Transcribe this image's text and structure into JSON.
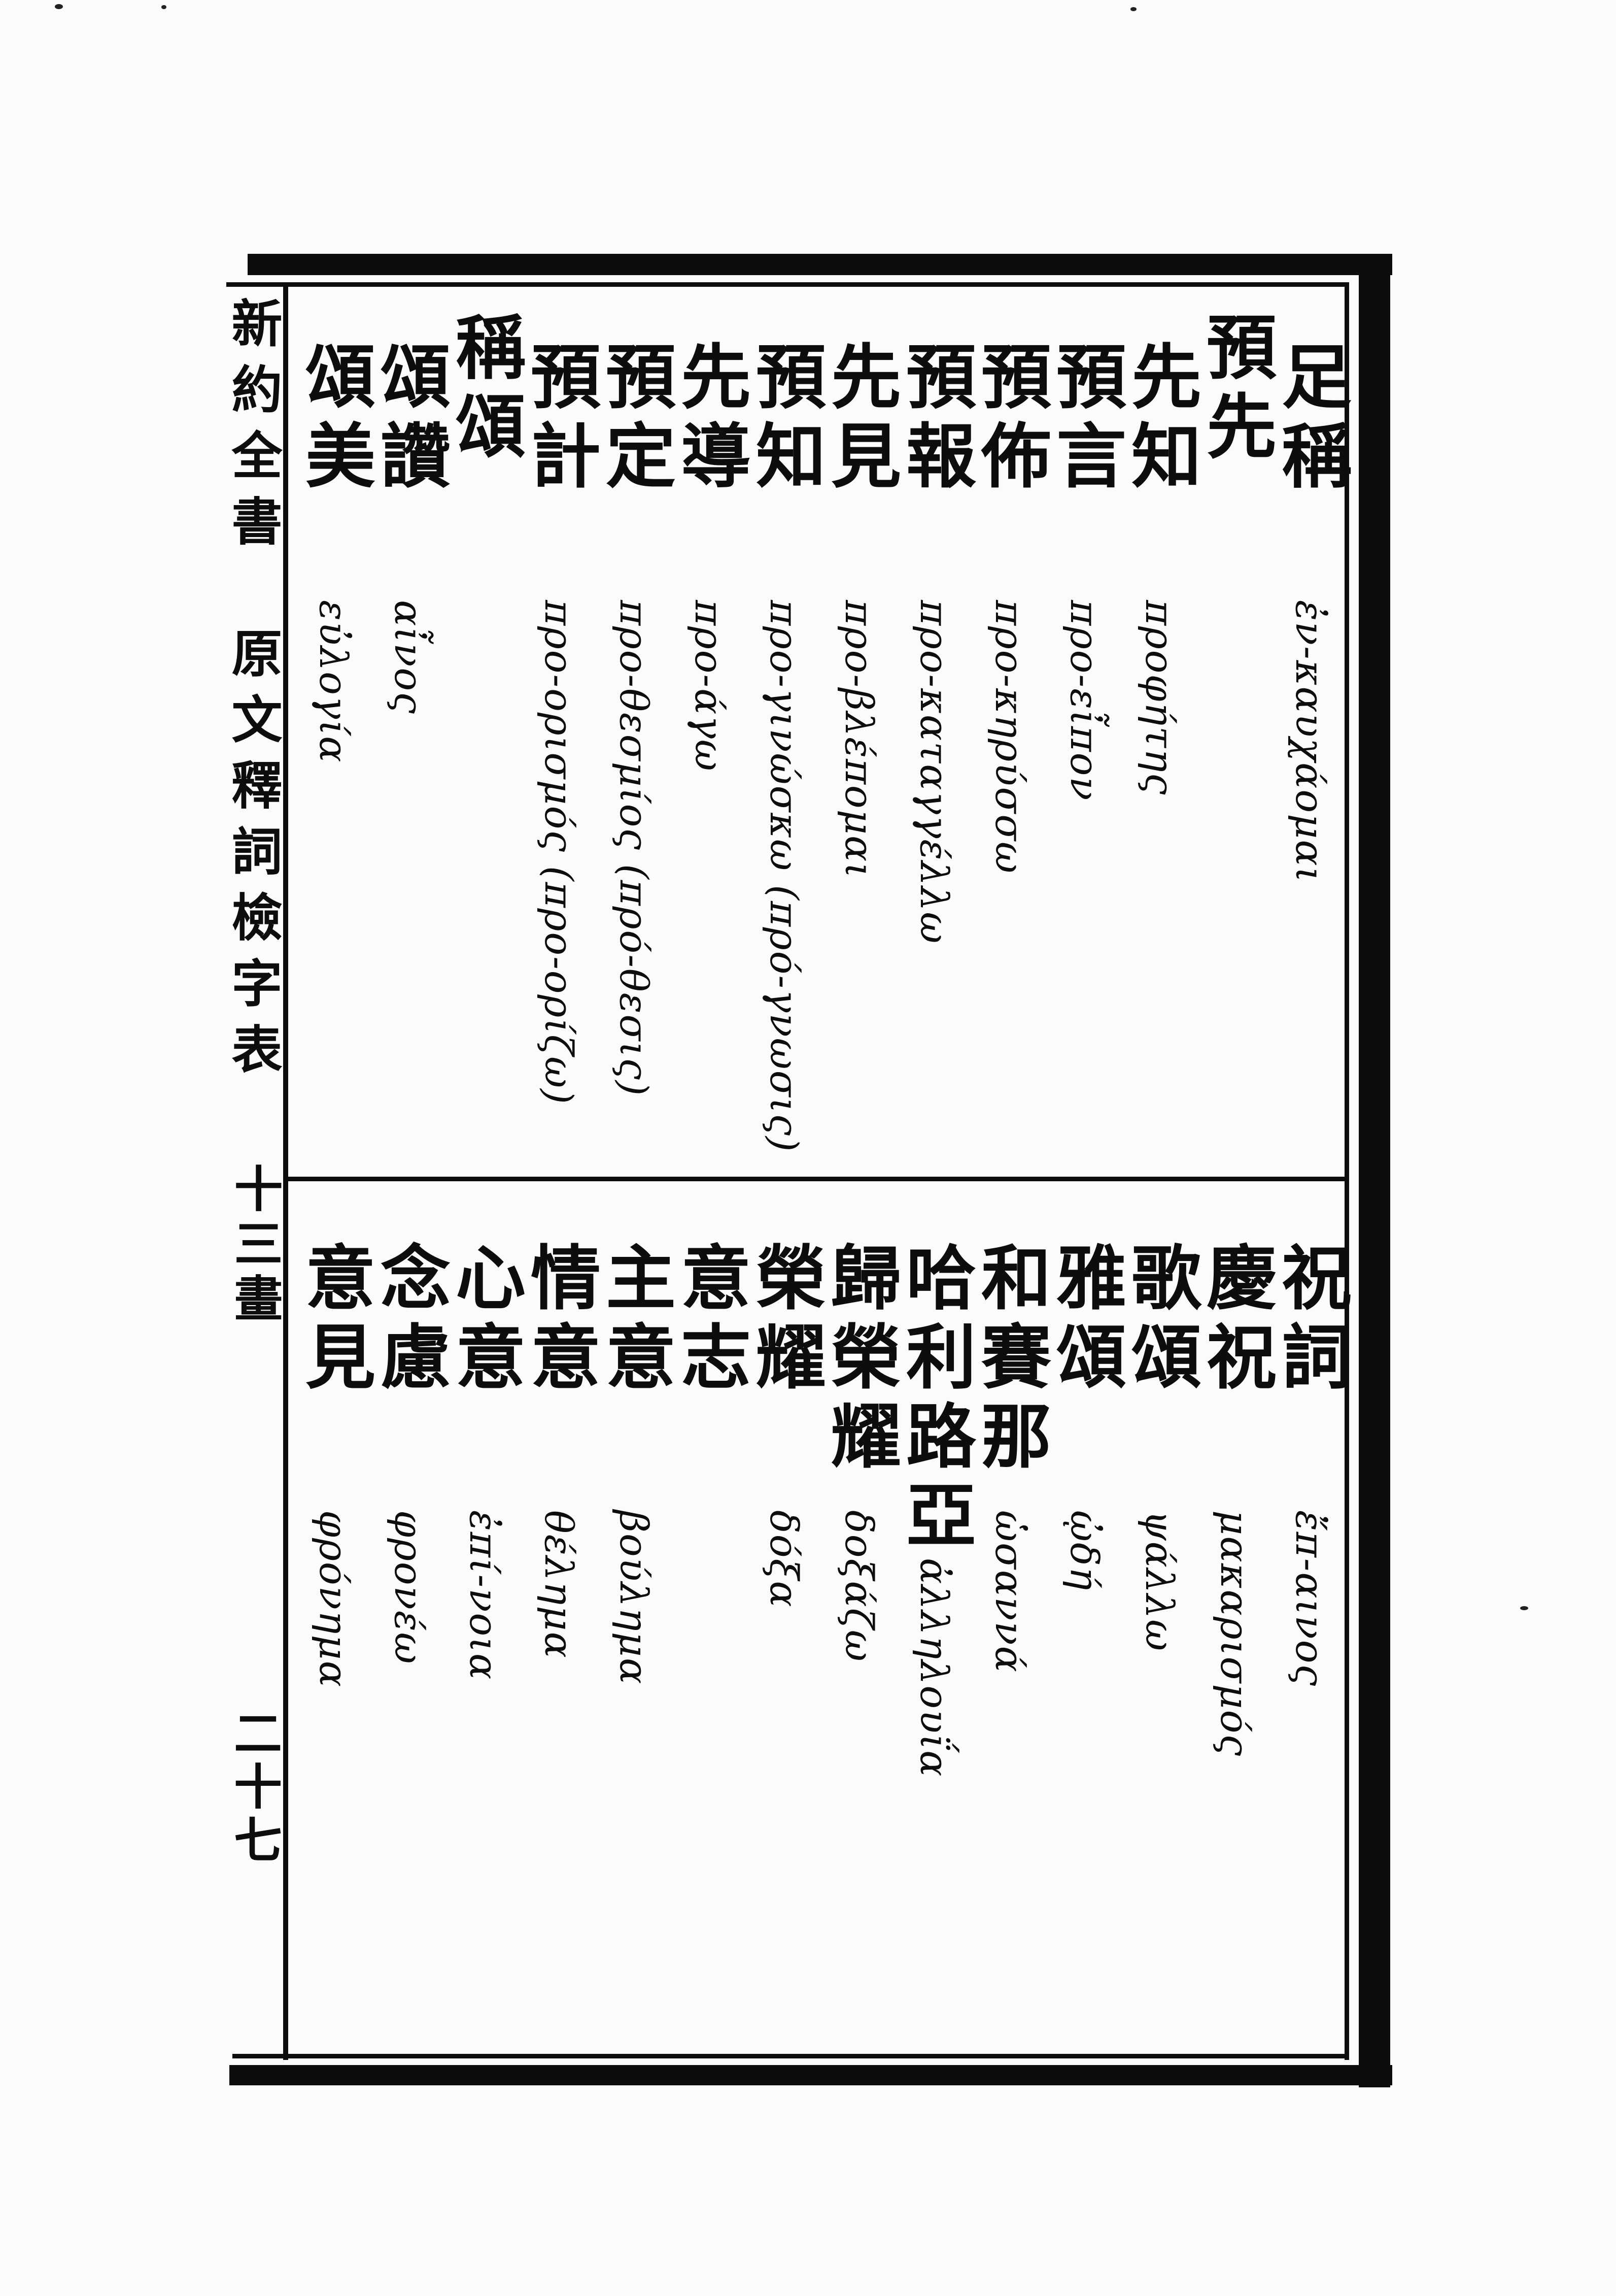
{
  "page": {
    "background": "#fbfbf9",
    "ink": "#0d0d0d"
  },
  "sidebar": {
    "title": "新約全書　原文釋詞檢字表",
    "section_label": "十三畫",
    "page_number": "二十七"
  },
  "sections": [
    {
      "id": "top",
      "entries": [
        {
          "type": "entry",
          "zh": "足稱",
          "gr": "ἐν-καυχάομαι"
        },
        {
          "type": "header",
          "zh": "預先"
        },
        {
          "type": "entry",
          "zh": "先知",
          "gr": "προφήτης"
        },
        {
          "type": "entry",
          "zh": "預言",
          "gr": "προ-εἶπον"
        },
        {
          "type": "entry",
          "zh": "預佈",
          "gr": "προ-κηρύσσω"
        },
        {
          "type": "entry",
          "zh": "預報",
          "gr": "προ-καταγγέλλω"
        },
        {
          "type": "entry",
          "zh": "先見",
          "gr": "προ-βλέπομαι"
        },
        {
          "type": "entry",
          "zh": "預知",
          "gr": "προ-γινώσκω (πρό-γνωσις)"
        },
        {
          "type": "entry",
          "zh": "先導",
          "gr": "προ-άγω"
        },
        {
          "type": "entry",
          "zh": "預定",
          "gr": "προ-θεσμίος (πρό-θεσις)"
        },
        {
          "type": "entry",
          "zh": "預計",
          "gr": "προ-ορισμός (προ-ορίζω)"
        },
        {
          "type": "header",
          "zh": "稱頌"
        },
        {
          "type": "entry",
          "zh": "頌讚",
          "gr": "αἶνος"
        },
        {
          "type": "entry",
          "zh": "頌美",
          "gr": "εὐλογία"
        }
      ]
    },
    {
      "id": "bottom",
      "entries": [
        {
          "type": "entry",
          "zh": "祝詞",
          "gr": "ἔπ-αινος"
        },
        {
          "type": "entry",
          "zh": "慶祝",
          "gr": "μακαρισμός"
        },
        {
          "type": "entry",
          "zh": "歌頌",
          "gr": "ψάλλω"
        },
        {
          "type": "entry",
          "zh": "雅頌",
          "gr": "ᾠδή"
        },
        {
          "type": "entry",
          "zh": "和賽那",
          "gr": "ὡσαννά"
        },
        {
          "type": "entry",
          "zh": "哈利路亞",
          "gr": "ἀλληλουΐα"
        },
        {
          "type": "entry",
          "zh": "歸榮耀",
          "gr": "δοξάζω"
        },
        {
          "type": "entry",
          "zh": "榮耀",
          "gr": "δόξα"
        },
        {
          "type": "header",
          "zh": "意志"
        },
        {
          "type": "entry",
          "zh": "主意",
          "gr": "βούλημα"
        },
        {
          "type": "entry",
          "zh": "情意",
          "gr": "θέλημα"
        },
        {
          "type": "entry",
          "zh": "心意",
          "gr": "ἐπί-νοια"
        },
        {
          "type": "entry",
          "zh": "念慮",
          "gr": "φρονέω"
        },
        {
          "type": "entry",
          "zh": "意見",
          "gr": "φρόνημα"
        }
      ]
    }
  ]
}
